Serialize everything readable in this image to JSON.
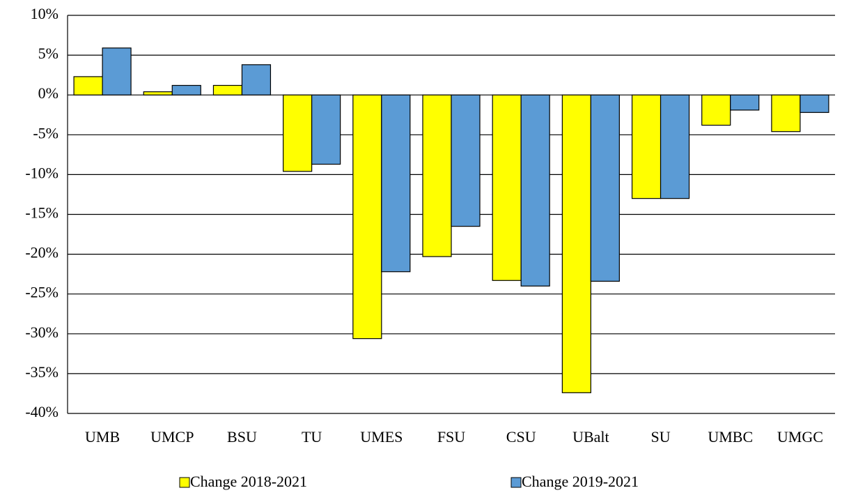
{
  "chart_data": {
    "type": "bar",
    "categories": [
      "UMB",
      "UMCP",
      "BSU",
      "TU",
      "UMES",
      "FSU",
      "CSU",
      "UBalt",
      "SU",
      "UMBC",
      "UMGC"
    ],
    "series": [
      {
        "name": "Change 2018-2021",
        "color": "#ffff00",
        "values": [
          2.3,
          0.4,
          1.2,
          -9.6,
          -30.6,
          -20.3,
          -23.3,
          -37.4,
          -13.0,
          -3.8,
          -4.6
        ]
      },
      {
        "name": "Change 2019-2021",
        "color": "#5b9bd5",
        "values": [
          5.9,
          1.2,
          3.8,
          -8.7,
          -22.2,
          -16.5,
          -24.0,
          -23.4,
          -13.0,
          -1.9,
          -2.2
        ]
      }
    ],
    "ylim": [
      -40,
      10
    ],
    "yticks": [
      {
        "value": -40,
        "label": "-40%"
      },
      {
        "value": -35,
        "label": "-35%"
      },
      {
        "value": -30,
        "label": "-30%"
      },
      {
        "value": -25,
        "label": "-25%"
      },
      {
        "value": -20,
        "label": "-20%"
      },
      {
        "value": -15,
        "label": "-15%"
      },
      {
        "value": -10,
        "label": "-10%"
      },
      {
        "value": -5,
        "label": "-5%"
      },
      {
        "value": 0,
        "label": "0%"
      },
      {
        "value": 5,
        "label": "5%"
      },
      {
        "value": 10,
        "label": "10%"
      }
    ],
    "grid": true,
    "legend": "bottom"
  }
}
